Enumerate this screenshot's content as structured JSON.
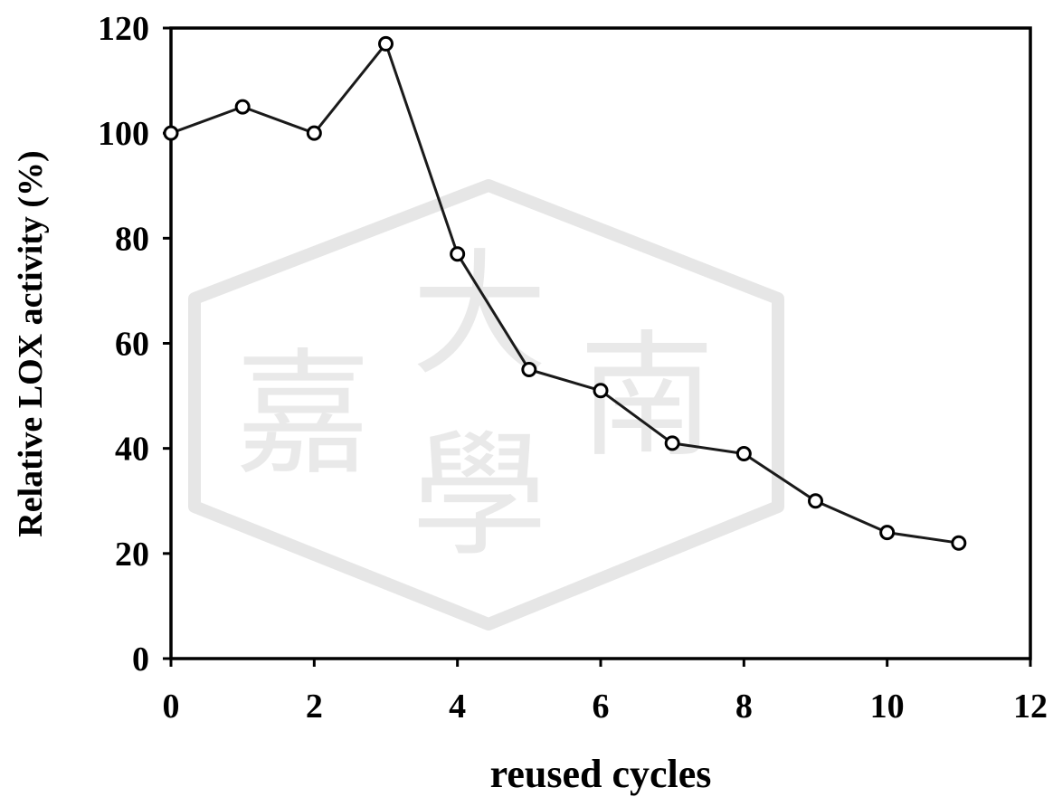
{
  "chart_data": {
    "type": "line",
    "xlabel": "reused cycles",
    "ylabel": "Relative LOX activity (%)",
    "xlim": [
      0,
      12
    ],
    "ylim": [
      0,
      120
    ],
    "x_ticks": [
      "0",
      "2",
      "4",
      "6",
      "8",
      "10",
      "12"
    ],
    "y_ticks": [
      "0",
      "20",
      "40",
      "60",
      "80",
      "100",
      "120"
    ],
    "grid": false,
    "legend": "none",
    "series": [
      {
        "marker": "open-circle",
        "color": "#000000",
        "x": [
          0,
          1,
          2,
          3,
          4,
          5,
          6,
          7,
          8,
          9,
          10,
          11
        ],
        "y": [
          100,
          105,
          100,
          117,
          77,
          55,
          51,
          41,
          39,
          30,
          24,
          22
        ]
      }
    ]
  },
  "watermark": {
    "characters": [
      "嘉",
      "大",
      "南",
      "學"
    ]
  }
}
